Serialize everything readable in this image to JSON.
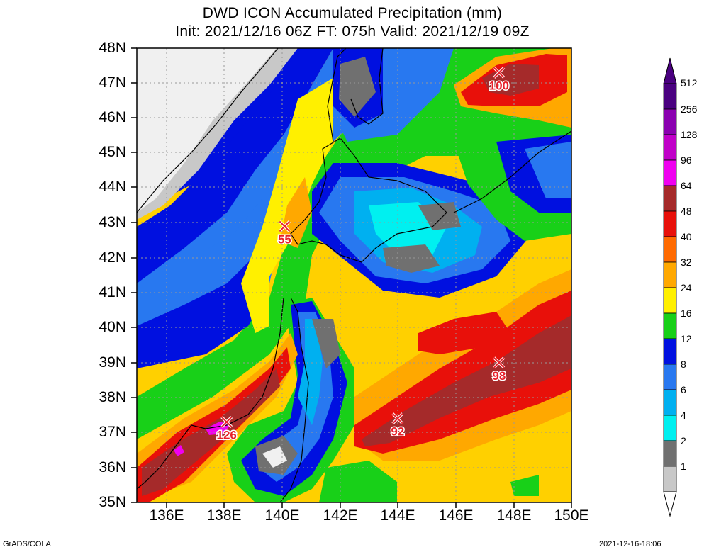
{
  "header": {
    "title": "DWD ICON Accumulated Precipitation (mm)",
    "subtitle": "Init: 2021/12/16 06Z  FT: 075h  Valid: 2021/12/19 09Z"
  },
  "axes": {
    "lat_labels": [
      "48N",
      "47N",
      "46N",
      "45N",
      "44N",
      "43N",
      "42N",
      "41N",
      "40N",
      "39N",
      "38N",
      "37N",
      "36N",
      "35N"
    ],
    "lon_labels": [
      "136E",
      "138E",
      "140E",
      "142E",
      "144E",
      "146E",
      "148E",
      "150E"
    ]
  },
  "colorbar": {
    "levels": [
      "512",
      "256",
      "128",
      "96",
      "64",
      "48",
      "40",
      "32",
      "24",
      "16",
      "12",
      "8",
      "6",
      "4",
      "2",
      "1"
    ],
    "colors": [
      "#4a0080",
      "#8a00b0",
      "#c000c8",
      "#f000f0",
      "#a52a2a",
      "#e8100a",
      "#ff6a00",
      "#ffa800",
      "#fff000",
      "#18d018",
      "#0010e0",
      "#2878f0",
      "#00b0f0",
      "#00f0f0",
      "#707070",
      "#c8c8c8"
    ]
  },
  "markers": [
    {
      "label": "100",
      "lon": 147.5,
      "lat": 47.3
    },
    {
      "label": "55",
      "lon": 140.1,
      "lat": 42.9
    },
    {
      "label": "98",
      "lon": 147.5,
      "lat": 39.0
    },
    {
      "label": "92",
      "lon": 144.0,
      "lat": 37.4
    },
    {
      "label": "126",
      "lon": 138.1,
      "lat": 37.3
    }
  ],
  "footer": {
    "left": "GrADS/COLA",
    "right": "2021-12-16-18:06"
  }
}
